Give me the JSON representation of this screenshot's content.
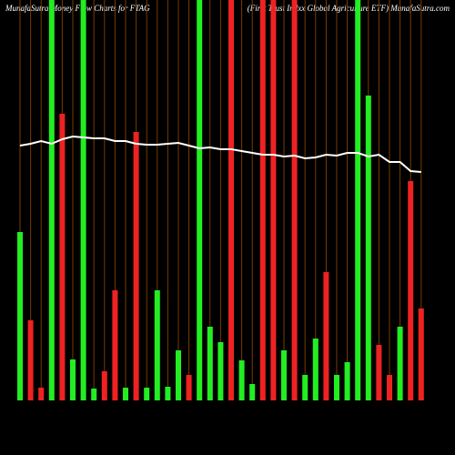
{
  "chart_data": {
    "type": "bar",
    "title": "MunafaSutra Money Flow Charts for FTAG",
    "subtitle": "(First Trust Indxx Global Agriculture ETF) MunafaSutra.com",
    "values": [
      185,
      88,
      14,
      440,
      315,
      45,
      440,
      13,
      32,
      121,
      14,
      295,
      14,
      121,
      15,
      55,
      28,
      440,
      81,
      64,
      440,
      44,
      18,
      440,
      440,
      55,
      440,
      28,
      68,
      141,
      28,
      42,
      440,
      335,
      61,
      28,
      81,
      241,
      101
    ],
    "bar_colors": [
      "#22ee22",
      "#ee2222",
      "#ee2222",
      "#22ee22",
      "#ee2222",
      "#22ee22",
      "#22ee22",
      "#22ee22",
      "#ee2222",
      "#ee2222",
      "#22ee22",
      "#ee2222",
      "#22ee22",
      "#22ee22",
      "#22ee22",
      "#22ee22",
      "#ee2222",
      "#22ee22",
      "#22ee22",
      "#22ee22",
      "#ee2222",
      "#22ee22",
      "#22ee22",
      "#ee2222",
      "#ee2222",
      "#22ee22",
      "#ee2222",
      "#22ee22",
      "#22ee22",
      "#ee2222",
      "#22ee22",
      "#22ee22",
      "#22ee22",
      "#22ee22",
      "#ee2222",
      "#ee2222",
      "#22ee22",
      "#ee2222",
      "#ee2222"
    ],
    "line": {
      "color": "#ffffff",
      "values": [
        280,
        282,
        285,
        282,
        287,
        290,
        289,
        288,
        288,
        285,
        285,
        282,
        281,
        281,
        282,
        283,
        280,
        277,
        278,
        276,
        276,
        274,
        272,
        270,
        270,
        268,
        269,
        266,
        267,
        270,
        269,
        272,
        272,
        268,
        270,
        262,
        262,
        252,
        251
      ]
    },
    "ylim": [
      0,
      440
    ]
  }
}
